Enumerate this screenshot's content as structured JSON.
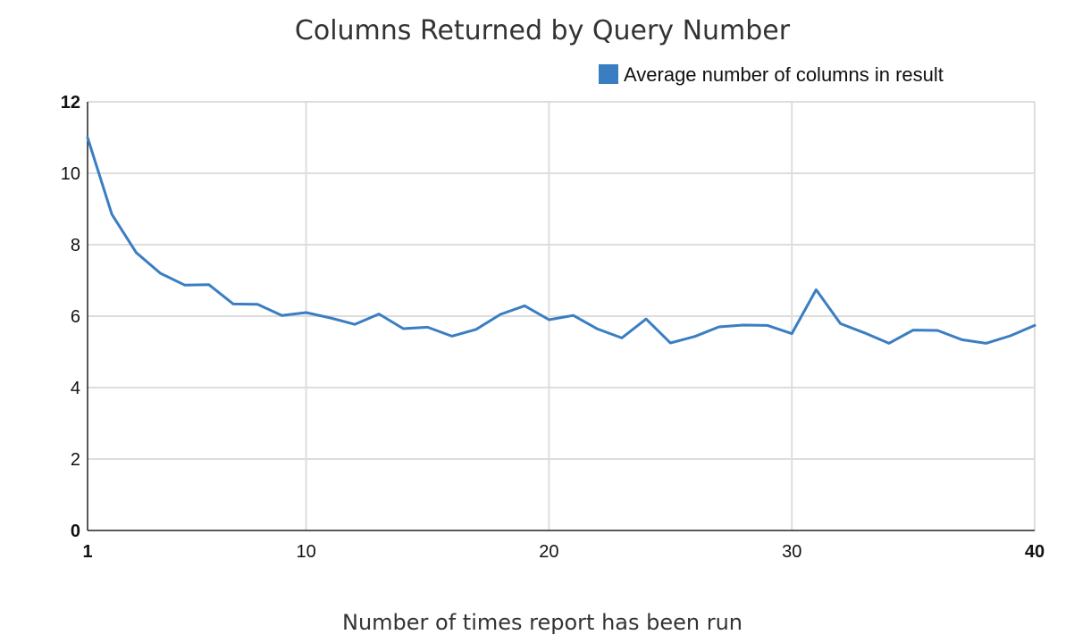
{
  "chart_data": {
    "type": "line",
    "title": "Columns Returned by Query Number",
    "xlabel": "Number of times report has been run",
    "ylabel": "",
    "xlim": [
      1,
      40
    ],
    "ylim": [
      0,
      12
    ],
    "x_ticks": [
      {
        "value": 1,
        "label": "1",
        "bold": true
      },
      {
        "value": 10,
        "label": "10",
        "bold": false
      },
      {
        "value": 20,
        "label": "20",
        "bold": false
      },
      {
        "value": 30,
        "label": "30",
        "bold": false
      },
      {
        "value": 40,
        "label": "40",
        "bold": true
      }
    ],
    "y_ticks": [
      {
        "value": 0,
        "label": "0",
        "bold": true
      },
      {
        "value": 2,
        "label": "2",
        "bold": false
      },
      {
        "value": 4,
        "label": "4",
        "bold": false
      },
      {
        "value": 6,
        "label": "6",
        "bold": false
      },
      {
        "value": 8,
        "label": "8",
        "bold": false
      },
      {
        "value": 10,
        "label": "10",
        "bold": false
      },
      {
        "value": 12,
        "label": "12",
        "bold": true
      }
    ],
    "grid": true,
    "legend_position": "top-right",
    "series": [
      {
        "name": "Average number of columns in result",
        "color": "#3a7ec2",
        "x": [
          1,
          2,
          3,
          4,
          5,
          6,
          7,
          8,
          9,
          10,
          11,
          12,
          13,
          14,
          15,
          16,
          17,
          18,
          19,
          20,
          21,
          22,
          23,
          24,
          25,
          26,
          27,
          28,
          29,
          30,
          31,
          32,
          33,
          34,
          35,
          36,
          37,
          38,
          39,
          40
        ],
        "values": [
          11.0,
          8.85,
          7.78,
          7.2,
          6.87,
          6.88,
          6.34,
          6.33,
          6.02,
          6.1,
          5.95,
          5.77,
          6.06,
          5.65,
          5.69,
          5.44,
          5.63,
          6.05,
          6.29,
          5.9,
          6.02,
          5.64,
          5.39,
          5.92,
          5.25,
          5.43,
          5.7,
          5.75,
          5.74,
          5.51,
          6.74,
          5.79,
          5.53,
          5.24,
          5.61,
          5.6,
          5.34,
          5.24,
          5.45,
          5.74
        ]
      }
    ]
  }
}
